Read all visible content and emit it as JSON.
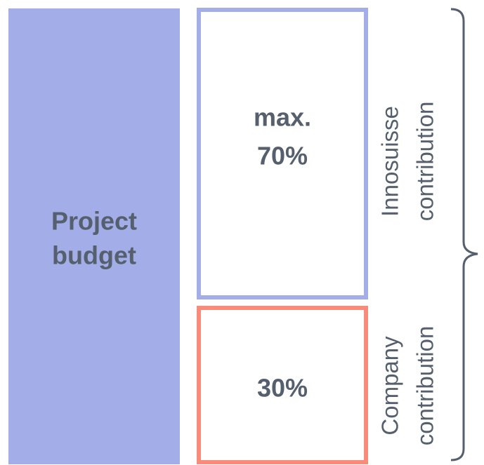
{
  "budget": {
    "lines": [
      "Project",
      "budget"
    ]
  },
  "innosuisse": {
    "lines": [
      "max.",
      "70%"
    ],
    "caption": [
      "Innosuisse",
      "contribution"
    ]
  },
  "company": {
    "lines": [
      "30%"
    ],
    "caption": [
      "Company",
      "contribution"
    ]
  }
}
